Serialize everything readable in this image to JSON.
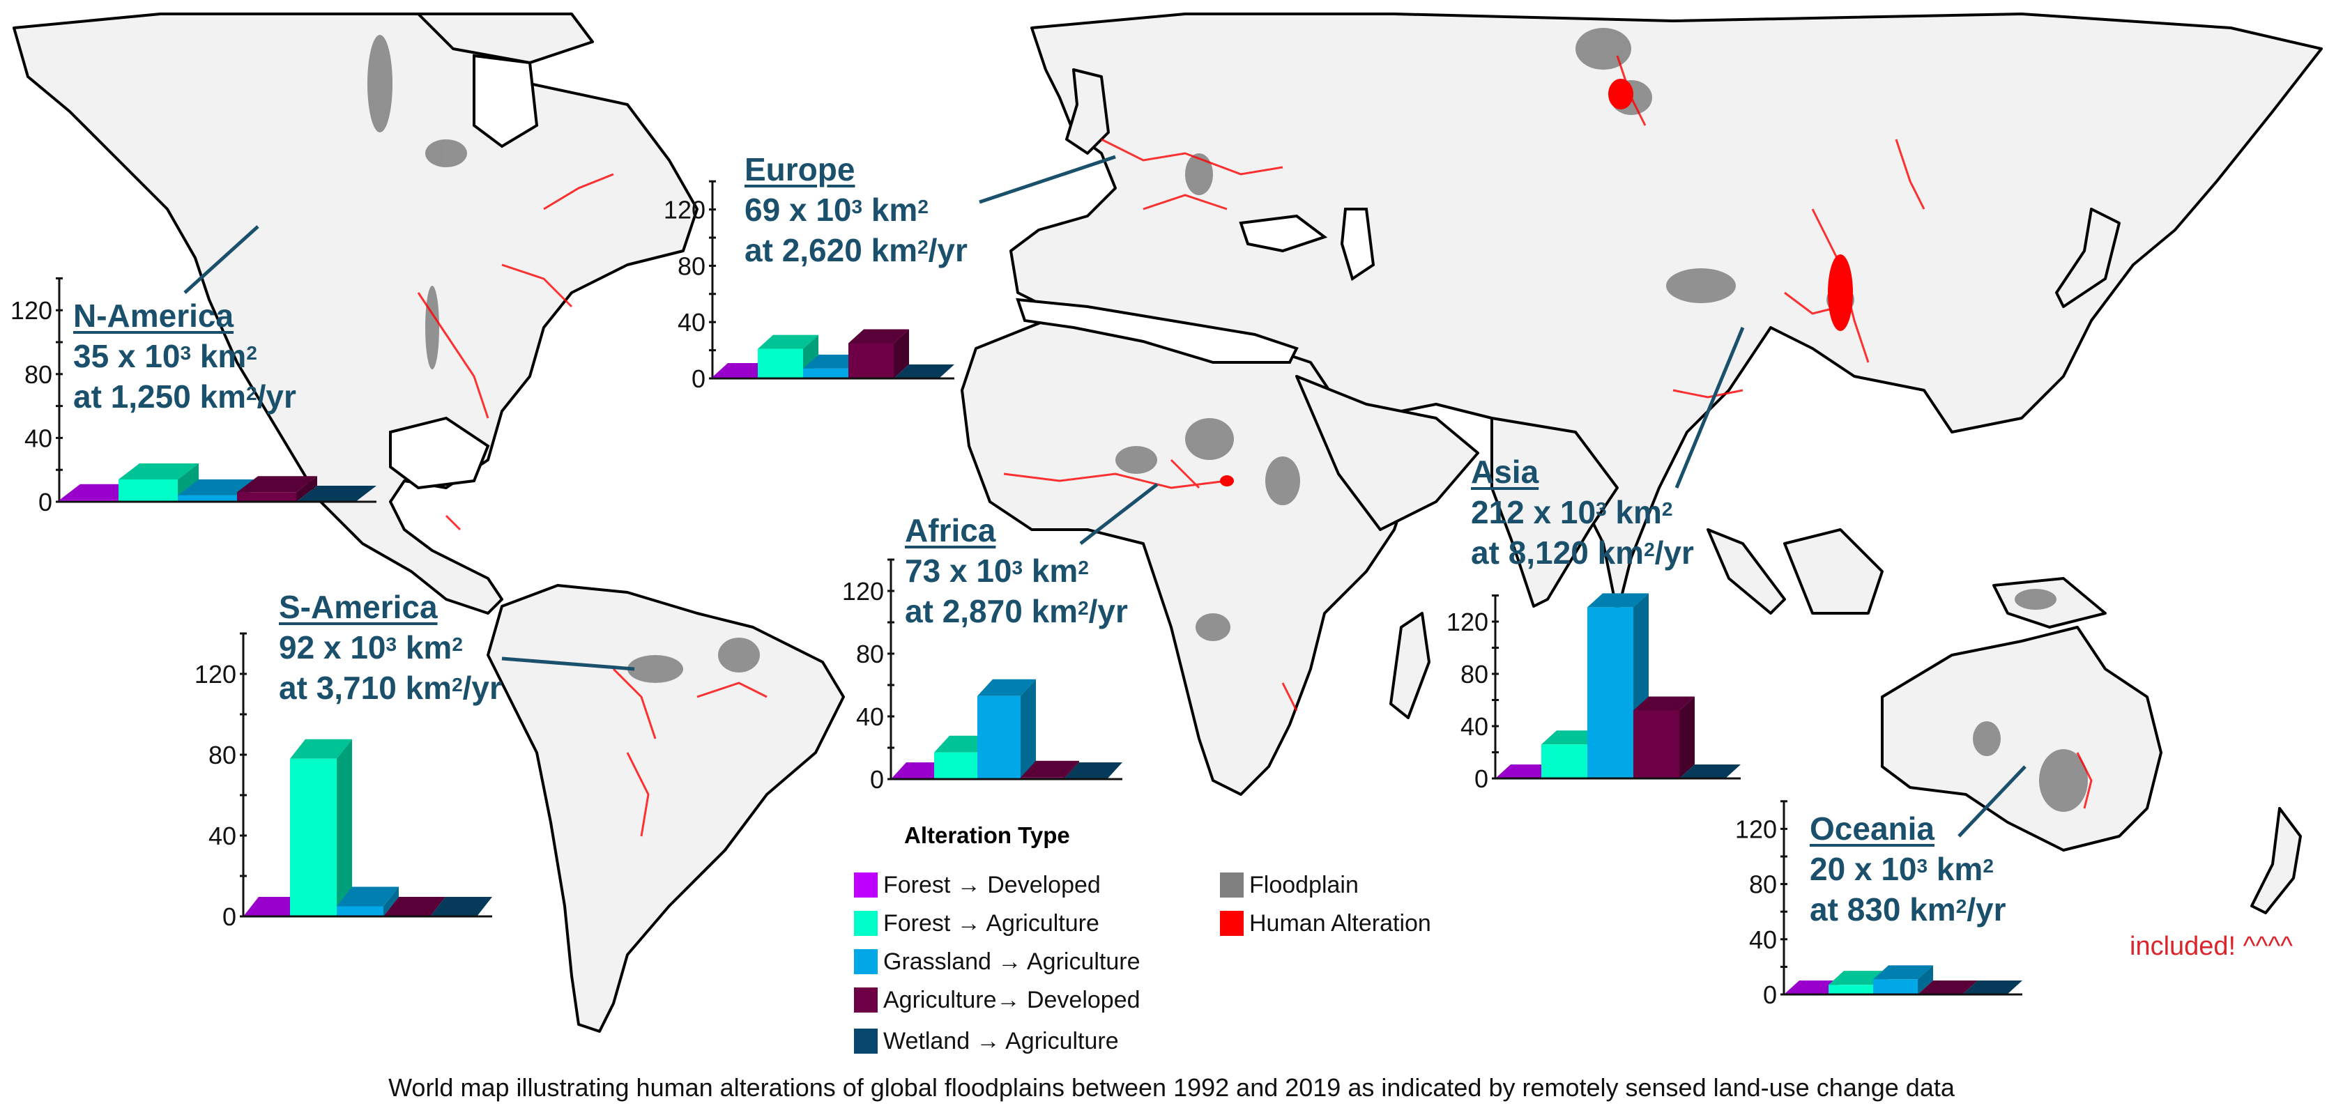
{
  "caption": "World map illustrating human alterations of global floodplains between 1992 and 2019 as indicated by remotely sensed land-use change data",
  "note": "included! ^^^^",
  "colors": {
    "land": "#f2f2f2",
    "coast": "#000000",
    "floodplain": "#808080",
    "human_alteration": "#ff0000",
    "label_text": "#1a506b",
    "note_text": "#d9252b"
  },
  "legend": {
    "title": "Alteration Type",
    "items": [
      {
        "label": "Forest → Developed",
        "color": "#c000ff"
      },
      {
        "label": "Forest → Agriculture",
        "color": "#00ffc8"
      },
      {
        "label": "Grassland → Agriculture",
        "color": "#00a8e8"
      },
      {
        "label": "Agriculture→ Developed",
        "color": "#6e0045"
      },
      {
        "label": "Wetland → Agriculture",
        "color": "#08476e"
      }
    ],
    "map_items": [
      {
        "label": "Floodplain",
        "color": "#808080"
      },
      {
        "label": "Human Alteration",
        "color": "#ff0000"
      }
    ]
  },
  "chart_data": [
    {
      "type": "bar",
      "region": "N-America",
      "area_value": "35",
      "area_text": " x 10",
      "area_exp": "3",
      "area_unit": " km",
      "area_unit_exp": "2",
      "rate_prefix": "at ",
      "rate_value": "1,250",
      "rate_unit": " km",
      "rate_unit_exp": "2",
      "rate_suffix": "/yr",
      "categories": [
        "Forest → Developed",
        "Forest → Agriculture",
        "Grassland → Agriculture",
        "Agriculture→ Developed",
        "Wetland → Agriculture"
      ],
      "values": [
        1,
        14,
        4,
        6,
        0
      ],
      "ylim": [
        0,
        140
      ],
      "yticks": [
        0,
        40,
        80,
        120
      ]
    },
    {
      "type": "bar",
      "region": "Europe",
      "area_value": "69",
      "area_text": " x 10",
      "area_exp": "3",
      "area_unit": " km",
      "area_unit_exp": "2",
      "rate_prefix": "at ",
      "rate_value": "2,620",
      "rate_unit": " km",
      "rate_unit_exp": "2",
      "rate_suffix": "/yr",
      "categories": [
        "Forest → Developed",
        "Forest → Agriculture",
        "Grassland → Agriculture",
        "Agriculture→ Developed",
        "Wetland → Agriculture"
      ],
      "values": [
        1,
        21,
        7,
        25,
        0
      ],
      "ylim": [
        0,
        140
      ],
      "yticks": [
        0,
        40,
        80,
        120
      ]
    },
    {
      "type": "bar",
      "region": "S-America",
      "area_value": "92",
      "area_text": " x 10",
      "area_exp": "3",
      "area_unit": " km",
      "area_unit_exp": "2",
      "rate_prefix": "at ",
      "rate_value": "3,710",
      "rate_unit": " km",
      "rate_unit_exp": "2",
      "rate_suffix": "/yr",
      "categories": [
        "Forest → Developed",
        "Forest → Agriculture",
        "Grassland → Agriculture",
        "Agriculture→ Developed",
        "Wetland → Agriculture"
      ],
      "values": [
        0,
        78,
        5,
        0,
        0
      ],
      "ylim": [
        0,
        140
      ],
      "yticks": [
        0,
        40,
        80,
        120
      ]
    },
    {
      "type": "bar",
      "region": "Africa",
      "area_value": "73",
      "area_text": " x 10",
      "area_exp": "3",
      "area_unit": " km",
      "area_unit_exp": "2",
      "rate_prefix": "at ",
      "rate_value": "2,870",
      "rate_unit": " km",
      "rate_unit_exp": "2",
      "rate_suffix": "/yr",
      "categories": [
        "Forest → Developed",
        "Forest → Agriculture",
        "Grassland → Agriculture",
        "Agriculture→ Developed",
        "Wetland → Agriculture"
      ],
      "values": [
        0,
        17,
        53,
        1,
        0
      ],
      "ylim": [
        0,
        140
      ],
      "yticks": [
        0,
        40,
        80,
        120
      ]
    },
    {
      "type": "bar",
      "region": "Asia",
      "area_value": "212",
      "area_text": " x 10",
      "area_exp": "3",
      "area_unit": " km",
      "area_unit_exp": "2",
      "rate_prefix": "at ",
      "rate_value": "8,120",
      "rate_unit": " km",
      "rate_unit_exp": "2",
      "rate_suffix": "/yr",
      "categories": [
        "Forest → Developed",
        "Forest → Agriculture",
        "Grassland → Agriculture",
        "Agriculture→ Developed",
        "Wetland → Agriculture"
      ],
      "values": [
        0,
        26,
        131,
        52,
        0
      ],
      "ylim": [
        0,
        140
      ],
      "yticks": [
        0,
        40,
        80,
        120
      ]
    },
    {
      "type": "bar",
      "region": "Oceania",
      "area_value": "20",
      "area_text": " x 10",
      "area_exp": "3",
      "area_unit": " km",
      "area_unit_exp": "2",
      "rate_prefix": "at ",
      "rate_value": "830",
      "rate_unit": " km",
      "rate_unit_exp": "2",
      "rate_suffix": "/yr",
      "categories": [
        "Forest → Developed",
        "Forest → Agriculture",
        "Grassland → Agriculture",
        "Agriculture→ Developed",
        "Wetland → Agriculture"
      ],
      "values": [
        0,
        7,
        11,
        0,
        0
      ],
      "ylim": [
        0,
        140
      ],
      "yticks": [
        0,
        40,
        80,
        120
      ]
    }
  ]
}
